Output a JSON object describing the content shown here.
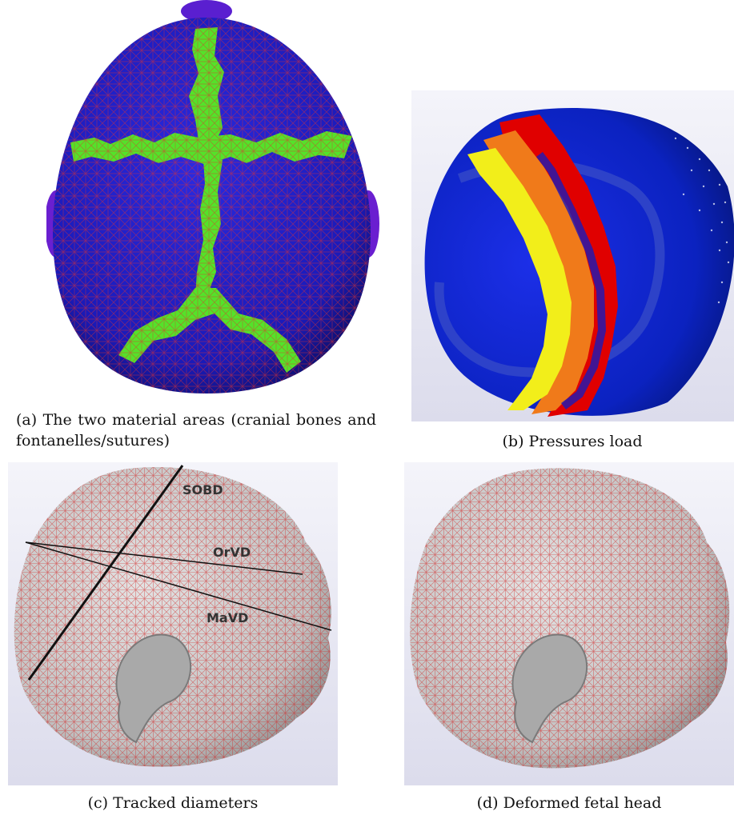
{
  "figure": {
    "panels": [
      {
        "id": "a",
        "caption": "(a) The two material areas (cranial bones and fontanelles/sutures)"
      },
      {
        "id": "b",
        "caption": "(b) Pressures load"
      },
      {
        "id": "c",
        "caption": "(c) Tracked diameters",
        "labels": {
          "sobd": "SOBD",
          "orvd": "OrVD",
          "mavd": "MaVD"
        }
      },
      {
        "id": "d",
        "caption": "(d) Deformed fetal head"
      }
    ]
  },
  "colors": {
    "bone_blue": "#1f1fd0",
    "suture_green": "#54e22a",
    "mesh_red": "#e03030",
    "pressure_red": "#e00000",
    "pressure_orange": "#f07a1a",
    "pressure_yellow": "#f2ee1a",
    "skin_gray": "#c9c9c9"
  }
}
